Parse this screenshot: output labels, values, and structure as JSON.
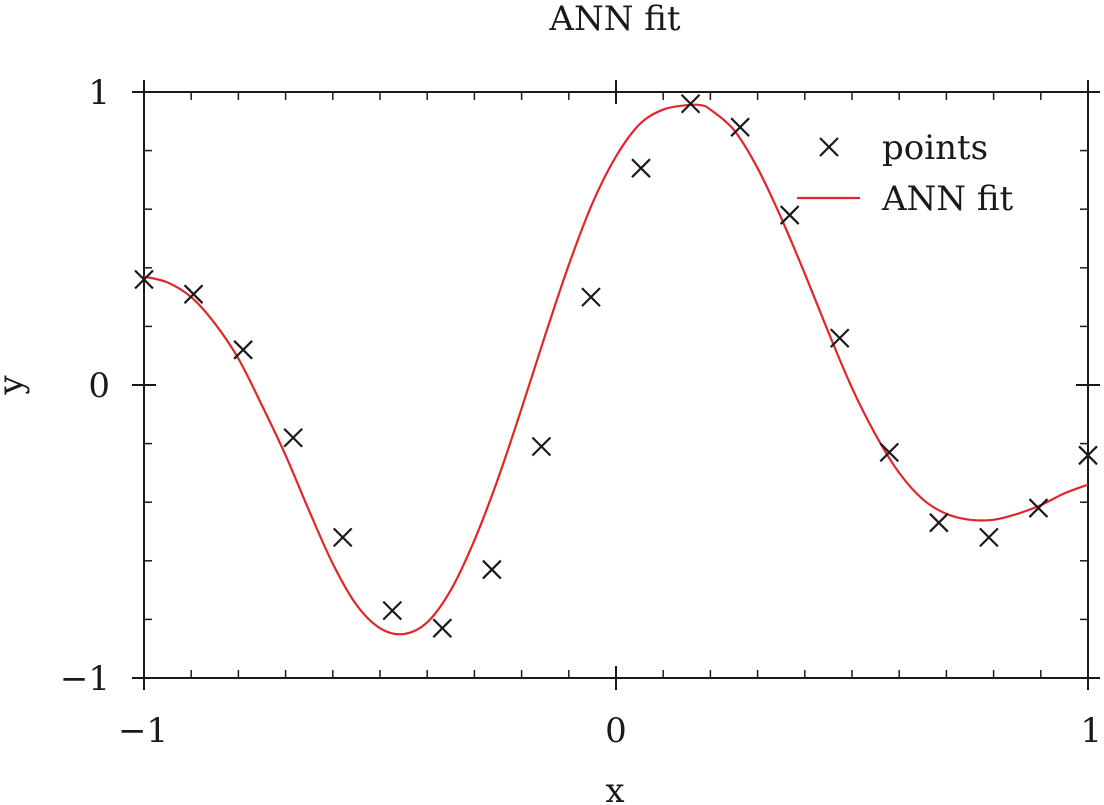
{
  "chart_data": {
    "type": "line",
    "title": "ANN fit",
    "xlabel": "x",
    "ylabel": "y",
    "xlim": [
      -1,
      1
    ],
    "ylim": [
      -1,
      1
    ],
    "x_ticks": [
      -1,
      0,
      1
    ],
    "x_tick_labels": [
      "−1",
      "0",
      "1"
    ],
    "y_ticks": [
      -1,
      0,
      1
    ],
    "y_tick_labels": [
      "−1",
      "0",
      "1"
    ],
    "grid": false,
    "legend_position": "top-right",
    "series": [
      {
        "name": "points",
        "kind": "scatter",
        "marker": "x",
        "color": "#1a1a1a",
        "x": [
          -1.0,
          -0.895,
          -0.79,
          -0.684,
          -0.579,
          -0.474,
          -0.368,
          -0.263,
          -0.158,
          -0.053,
          0.053,
          0.158,
          0.263,
          0.368,
          0.474,
          0.579,
          0.684,
          0.79,
          0.895,
          1.0
        ],
        "y": [
          0.36,
          0.31,
          0.12,
          -0.18,
          -0.52,
          -0.77,
          -0.83,
          -0.63,
          -0.21,
          0.3,
          0.74,
          0.96,
          0.88,
          0.58,
          0.16,
          -0.23,
          -0.47,
          -0.52,
          -0.42,
          -0.24
        ]
      },
      {
        "name": "ANN fit",
        "kind": "line",
        "color": "#e0262b",
        "x": [
          -1.0,
          -0.95,
          -0.9,
          -0.85,
          -0.8,
          -0.75,
          -0.7,
          -0.65,
          -0.6,
          -0.55,
          -0.5,
          -0.45,
          -0.4,
          -0.35,
          -0.3,
          -0.25,
          -0.2,
          -0.15,
          -0.1,
          -0.05,
          0.0,
          0.05,
          0.1,
          0.15,
          0.18,
          0.2,
          0.25,
          0.3,
          0.35,
          0.4,
          0.45,
          0.5,
          0.55,
          0.6,
          0.65,
          0.7,
          0.75,
          0.8,
          0.85,
          0.9,
          0.95,
          1.0
        ],
        "y": [
          0.37,
          0.35,
          0.3,
          0.21,
          0.09,
          -0.07,
          -0.24,
          -0.43,
          -0.61,
          -0.75,
          -0.83,
          -0.85,
          -0.81,
          -0.7,
          -0.53,
          -0.32,
          -0.08,
          0.17,
          0.41,
          0.62,
          0.78,
          0.89,
          0.94,
          0.955,
          0.955,
          0.94,
          0.87,
          0.74,
          0.57,
          0.38,
          0.18,
          -0.01,
          -0.17,
          -0.3,
          -0.39,
          -0.44,
          -0.46,
          -0.46,
          -0.44,
          -0.41,
          -0.37,
          -0.34
        ]
      }
    ]
  }
}
